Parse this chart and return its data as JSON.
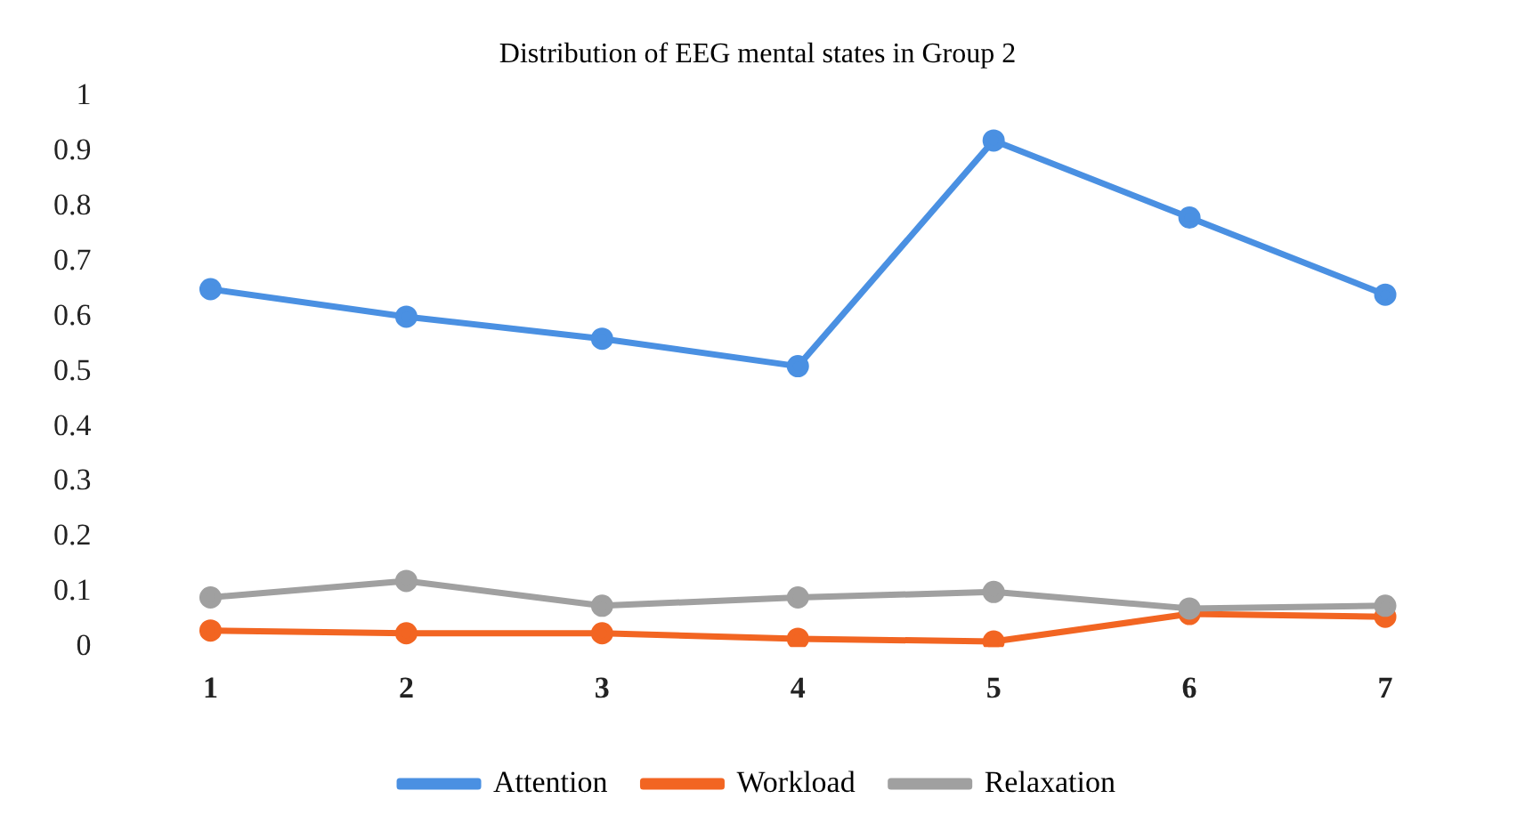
{
  "chart_data": {
    "type": "line",
    "title": "Distribution of EEG mental states in Group 2",
    "categories": [
      "1",
      "2",
      "3",
      "4",
      "5",
      "6",
      "7"
    ],
    "series": [
      {
        "name": "Attention",
        "color": "#4a90e2",
        "values": [
          0.65,
          0.6,
          0.56,
          0.51,
          0.92,
          0.78,
          0.64
        ]
      },
      {
        "name": "Workload",
        "color": "#f26522",
        "values": [
          0.03,
          0.025,
          0.025,
          0.015,
          0.01,
          0.06,
          0.055
        ]
      },
      {
        "name": "Relaxation",
        "color": "#a0a0a0",
        "values": [
          0.09,
          0.12,
          0.075,
          0.09,
          0.1,
          0.07,
          0.075
        ]
      }
    ],
    "ylim": [
      0,
      1
    ],
    "yticks": [
      0,
      0.1,
      0.2,
      0.3,
      0.4,
      0.5,
      0.6,
      0.7,
      0.8,
      0.9,
      1
    ],
    "grid": false,
    "legend": "bottom",
    "marker": "circle",
    "line_style": "solid"
  }
}
